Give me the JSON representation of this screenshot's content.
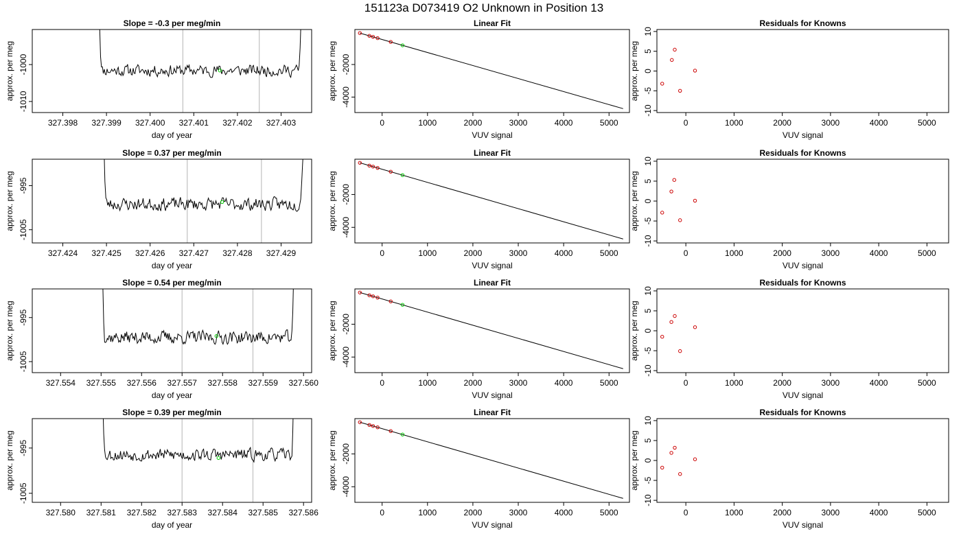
{
  "figure": {
    "title": "151123a      D073419    O2 Unknown in Position  13"
  },
  "colors": {
    "trace": "#000000",
    "marker_line": "#c0c0c0",
    "unknown_point": "#00cc00",
    "known_point": "#cc0000",
    "fit_line": "#000000"
  },
  "chart_data": [
    {
      "type": "line",
      "panel": "time-series",
      "title": "Slope =  -0.3  per meg/min",
      "xlabel": "day of year",
      "ylabel": "approx. per meg",
      "xlim": [
        327.3973,
        327.4037
      ],
      "ylim": [
        -1013,
        -990.5
      ],
      "xticks": [
        "327.398",
        "327.399",
        "327.400",
        "327.401",
        "327.402",
        "327.403"
      ],
      "yticks": [
        "-1000",
        "-1010"
      ],
      "trace_start": 327.3988,
      "trace_end": 327.4035,
      "plateau_start": 327.3989,
      "plateau_end": 327.4034,
      "baseline": -1001.6,
      "noise": 1.4,
      "seed": 11,
      "vlines": [
        327.40075,
        327.4025
      ],
      "unknown_point": [
        327.4016,
        -1001.6
      ]
    },
    {
      "type": "line",
      "panel": "linear-fit",
      "title": "Linear Fit",
      "xlabel": "VUV signal",
      "ylabel": "approx. per meg",
      "xlim": [
        -600,
        5450
      ],
      "ylim": [
        -4950,
        150
      ],
      "xticks": [
        "0",
        "1000",
        "2000",
        "3000",
        "4000",
        "5000"
      ],
      "yticks": [
        "-2000",
        "-4000"
      ],
      "fit_line": [
        [
          -490,
          -70
        ],
        [
          5310,
          -4710
        ]
      ],
      "knowns": [
        [
          -490,
          -70
        ],
        [
          -280,
          -240
        ],
        [
          -200,
          -300
        ],
        [
          -100,
          -380
        ],
        [
          190,
          -610
        ]
      ],
      "unknown": [
        [
          450,
          -820
        ]
      ]
    },
    {
      "type": "scatter",
      "panel": "residuals",
      "title": "Residuals for Knowns",
      "xlabel": "VUV signal",
      "ylabel": "approx. per meg",
      "xlim": [
        -600,
        5450
      ],
      "ylim": [
        -10.5,
        10.5
      ],
      "xticks": [
        "0",
        "1000",
        "2000",
        "3000",
        "4000",
        "5000"
      ],
      "yticks": [
        "-10",
        "-5",
        "0",
        "5",
        "10"
      ],
      "points": [
        [
          -490,
          -3.2
        ],
        [
          -290,
          2.8
        ],
        [
          -230,
          5.4
        ],
        [
          -120,
          -5.0
        ],
        [
          190,
          0.1
        ]
      ]
    },
    {
      "type": "line",
      "panel": "time-series",
      "title": "Slope =  0.37  per meg/min",
      "xlabel": "day of year",
      "ylabel": "approx. per meg",
      "xlim": [
        327.4233,
        327.4297
      ],
      "ylim": [
        -1008,
        -989
      ],
      "xticks": [
        "327.424",
        "327.425",
        "327.426",
        "327.427",
        "327.428",
        "327.429"
      ],
      "yticks": [
        "-995",
        "-1005"
      ],
      "trace_start": 327.4249,
      "trace_end": 327.4296,
      "plateau_start": 327.425,
      "plateau_end": 327.4294,
      "baseline": -999.2,
      "noise": 1.3,
      "seed": 23,
      "vlines": [
        327.42685,
        327.42855
      ],
      "unknown_point": [
        327.42765,
        -998.7
      ]
    },
    {
      "type": "line",
      "panel": "linear-fit",
      "title": "Linear Fit",
      "xlabel": "VUV signal",
      "ylabel": "approx. per meg",
      "xlim": [
        -600,
        5450
      ],
      "ylim": [
        -4950,
        150
      ],
      "xticks": [
        "0",
        "1000",
        "2000",
        "3000",
        "4000",
        "5000"
      ],
      "yticks": [
        "-2000",
        "-4000"
      ],
      "fit_line": [
        [
          -490,
          -70
        ],
        [
          5310,
          -4710
        ]
      ],
      "knowns": [
        [
          -490,
          -70
        ],
        [
          -280,
          -240
        ],
        [
          -200,
          -300
        ],
        [
          -100,
          -380
        ],
        [
          190,
          -610
        ]
      ],
      "unknown": [
        [
          450,
          -820
        ]
      ]
    },
    {
      "type": "scatter",
      "panel": "residuals",
      "title": "Residuals for Knowns",
      "xlabel": "VUV signal",
      "ylabel": "approx. per meg",
      "xlim": [
        -600,
        5450
      ],
      "ylim": [
        -10.5,
        10.5
      ],
      "xticks": [
        "0",
        "1000",
        "2000",
        "3000",
        "4000",
        "5000"
      ],
      "yticks": [
        "-10",
        "-5",
        "0",
        "5",
        "10"
      ],
      "points": [
        [
          -490,
          -2.9
        ],
        [
          -300,
          2.4
        ],
        [
          -240,
          5.3
        ],
        [
          -120,
          -4.8
        ],
        [
          190,
          0.1
        ]
      ]
    },
    {
      "type": "line",
      "panel": "time-series",
      "title": "Slope =  0.54  per meg/min",
      "xlabel": "day of year",
      "ylabel": "approx. per meg",
      "xlim": [
        327.5533,
        327.5602
      ],
      "ylim": [
        -1007.5,
        -988.5
      ],
      "xticks": [
        "327.554",
        "327.555",
        "327.556",
        "327.557",
        "327.558",
        "327.559",
        "327.560"
      ],
      "yticks": [
        "-995",
        "-1005"
      ],
      "trace_start": 327.555,
      "trace_end": 327.5598,
      "plateau_start": 327.5551,
      "plateau_end": 327.5597,
      "baseline": -999.5,
      "noise": 1.3,
      "seed": 37,
      "vlines": [
        327.557,
        327.55875
      ],
      "unknown_point": [
        327.55785,
        -999.2
      ]
    },
    {
      "type": "line",
      "panel": "linear-fit",
      "title": "Linear Fit",
      "xlabel": "VUV signal",
      "ylabel": "approx. per meg",
      "xlim": [
        -600,
        5450
      ],
      "ylim": [
        -4950,
        150
      ],
      "xticks": [
        "0",
        "1000",
        "2000",
        "3000",
        "4000",
        "5000"
      ],
      "yticks": [
        "-2000",
        "-4000"
      ],
      "fit_line": [
        [
          -490,
          -70
        ],
        [
          5310,
          -4710
        ]
      ],
      "knowns": [
        [
          -490,
          -70
        ],
        [
          -280,
          -240
        ],
        [
          -200,
          -300
        ],
        [
          -100,
          -380
        ],
        [
          190,
          -610
        ]
      ],
      "unknown": [
        [
          450,
          -820
        ]
      ]
    },
    {
      "type": "scatter",
      "panel": "residuals",
      "title": "Residuals for Knowns",
      "xlabel": "VUV signal",
      "ylabel": "approx. per meg",
      "xlim": [
        -600,
        5450
      ],
      "ylim": [
        -10.5,
        10.5
      ],
      "xticks": [
        "0",
        "1000",
        "2000",
        "3000",
        "4000",
        "5000"
      ],
      "yticks": [
        "-10",
        "-5",
        "0",
        "5",
        "10"
      ],
      "points": [
        [
          -490,
          -1.5
        ],
        [
          -300,
          2.2
        ],
        [
          -230,
          3.7
        ],
        [
          -120,
          -5.1
        ],
        [
          190,
          0.9
        ]
      ]
    },
    {
      "type": "line",
      "panel": "time-series",
      "title": "Slope =  0.39  per meg/min",
      "xlabel": "day of year",
      "ylabel": "approx. per meg",
      "xlim": [
        327.5793,
        327.5862
      ],
      "ylim": [
        -1007,
        -988.5
      ],
      "xticks": [
        "327.580",
        "327.581",
        "327.582",
        "327.583",
        "327.584",
        "327.585",
        "327.586"
      ],
      "yticks": [
        "-995",
        "-1005"
      ],
      "trace_start": 327.581,
      "trace_end": 327.5858,
      "plateau_start": 327.5811,
      "plateau_end": 327.5857,
      "baseline": -996.5,
      "noise": 1.2,
      "seed": 53,
      "vlines": [
        327.583,
        327.58475
      ],
      "unknown_point": [
        327.5839,
        -997.2
      ]
    },
    {
      "type": "line",
      "panel": "linear-fit",
      "title": "Linear Fit",
      "xlabel": "VUV signal",
      "ylabel": "approx. per meg",
      "xlim": [
        -600,
        5450
      ],
      "ylim": [
        -4950,
        150
      ],
      "xticks": [
        "0",
        "1000",
        "2000",
        "3000",
        "4000",
        "5000"
      ],
      "yticks": [
        "-2000",
        "-4000"
      ],
      "fit_line": [
        [
          -490,
          -70
        ],
        [
          5310,
          -4710
        ]
      ],
      "knowns": [
        [
          -490,
          -70
        ],
        [
          -280,
          -240
        ],
        [
          -200,
          -300
        ],
        [
          -100,
          -380
        ],
        [
          190,
          -610
        ]
      ],
      "unknown": [
        [
          450,
          -820
        ]
      ]
    },
    {
      "type": "scatter",
      "panel": "residuals",
      "title": "Residuals for Knowns",
      "xlabel": "VUV signal",
      "ylabel": "approx. per meg",
      "xlim": [
        -600,
        5450
      ],
      "ylim": [
        -10.5,
        10.5
      ],
      "xticks": [
        "0",
        "1000",
        "2000",
        "3000",
        "4000",
        "5000"
      ],
      "yticks": [
        "-10",
        "-5",
        "0",
        "5",
        "10"
      ],
      "points": [
        [
          -490,
          -1.8
        ],
        [
          -300,
          1.9
        ],
        [
          -230,
          3.2
        ],
        [
          -120,
          -3.4
        ],
        [
          190,
          0.3
        ]
      ]
    }
  ]
}
